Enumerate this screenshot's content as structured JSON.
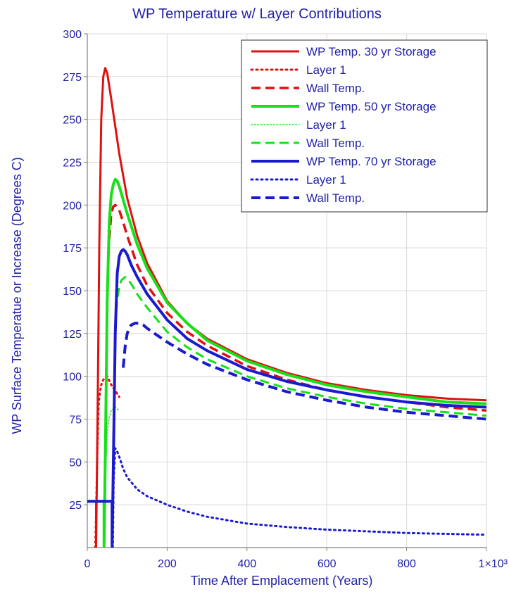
{
  "chart_data": {
    "type": "line",
    "title": "WP Temperature w/ Layer Contributions",
    "xlabel": "Time After Emplacement (Years)",
    "ylabel": "WP Surface Temperatue or Increase (Degrees C)",
    "xlim": [
      0,
      1000
    ],
    "ylim": [
      0,
      300
    ],
    "xticks": [
      0,
      200,
      400,
      600,
      800,
      1000
    ],
    "xtick_labels": [
      "0",
      "200",
      "400",
      "600",
      "800",
      "1×10³"
    ],
    "yticks": [
      25,
      50,
      75,
      100,
      125,
      150,
      175,
      200,
      225,
      250,
      275,
      300
    ],
    "grid": true,
    "legend_position": "top-right",
    "series": [
      {
        "name": "WP Temp. 30 yr Storage",
        "color": "#e01010",
        "style": "solid",
        "width": 3,
        "x": [
          0,
          22,
          22,
          26,
          30,
          35,
          40,
          45,
          50,
          60,
          70,
          80,
          100,
          125,
          150,
          200,
          250,
          300,
          400,
          500,
          600,
          700,
          800,
          900,
          1000
        ],
        "y": [
          27,
          27,
          0,
          80,
          175,
          250,
          275,
          280,
          277,
          262,
          246,
          230,
          204,
          182,
          166,
          144,
          131,
          122,
          110,
          102,
          96,
          92,
          89,
          87,
          86
        ]
      },
      {
        "name": "Layer 1",
        "color": "#e01010",
        "style": "dotted",
        "width": 3,
        "x": [
          20,
          22,
          25,
          28,
          30,
          35,
          40,
          50,
          60,
          80
        ],
        "y": [
          0,
          20,
          55,
          82,
          88,
          95,
          98,
          100,
          95,
          88
        ]
      },
      {
        "name": "Wall Temp.",
        "color": "#e01010",
        "style": "dashed",
        "width": 3.5,
        "x": [
          55,
          60,
          65,
          70,
          75,
          80,
          90,
          100,
          125,
          150,
          200,
          250,
          300,
          400,
          500,
          600,
          700,
          800,
          900,
          1000
        ],
        "y": [
          180,
          195,
          199,
          200,
          199,
          197,
          190,
          182,
          165,
          153,
          137,
          126,
          118,
          106,
          98,
          92,
          88,
          85,
          82,
          80
        ]
      },
      {
        "name": "WP Temp. 50 yr Storage",
        "color": "#18e018",
        "style": "solid",
        "width": 4,
        "x": [
          0,
          42,
          42,
          46,
          50,
          55,
          60,
          65,
          70,
          75,
          80,
          90,
          100,
          125,
          150,
          200,
          250,
          300,
          400,
          500,
          600,
          700,
          800,
          900,
          1000
        ],
        "y": [
          27,
          27,
          0,
          70,
          145,
          190,
          206,
          212,
          215,
          214,
          211,
          203,
          195,
          177,
          163,
          143,
          131,
          121,
          109,
          101,
          95,
          91,
          88,
          85,
          84
        ]
      },
      {
        "name": "Layer 1",
        "color": "#18e018",
        "style": "dotted",
        "width": 1.5,
        "x": [
          42,
          44,
          47,
          50,
          55,
          60,
          70,
          80
        ],
        "y": [
          0,
          20,
          50,
          68,
          76,
          80,
          82,
          80
        ]
      },
      {
        "name": "Wall Temp.",
        "color": "#18e018",
        "style": "dashed",
        "width": 3,
        "x": [
          70,
          75,
          80,
          85,
          90,
          95,
          100,
          110,
          125,
          150,
          200,
          250,
          300,
          400,
          500,
          600,
          700,
          800,
          900,
          1000
        ],
        "y": [
          130,
          145,
          152,
          156,
          157,
          158,
          157,
          154,
          148,
          140,
          126,
          117,
          110,
          100,
          93,
          88,
          84,
          81,
          79,
          77
        ]
      },
      {
        "name": "WP Temp. 70 yr Storage",
        "color": "#1a1ad0",
        "style": "solid",
        "width": 4,
        "x": [
          0,
          62,
          62,
          66,
          70,
          75,
          80,
          85,
          90,
          95,
          100,
          110,
          125,
          150,
          200,
          250,
          300,
          400,
          500,
          600,
          700,
          800,
          900,
          1000
        ],
        "y": [
          27,
          27,
          0,
          60,
          125,
          160,
          170,
          173,
          174,
          173,
          171,
          165,
          158,
          148,
          133,
          122,
          115,
          104,
          97,
          92,
          88,
          85,
          83,
          82
        ]
      },
      {
        "name": "Layer 1",
        "color": "#1a1ad0",
        "style": "dotted",
        "width": 3,
        "x": [
          64,
          66,
          70,
          75,
          80,
          90,
          100,
          125,
          150,
          200,
          250,
          300,
          400,
          500,
          600,
          700,
          800,
          900,
          1000
        ],
        "y": [
          0,
          40,
          58,
          56,
          53,
          46,
          41,
          34,
          30,
          25,
          21,
          18,
          14,
          12,
          10.5,
          9.5,
          8.5,
          8,
          7.5
        ]
      },
      {
        "name": "Wall Temp.",
        "color": "#1a1ad0",
        "style": "dashed",
        "width": 4,
        "x": [
          90,
          95,
          100,
          105,
          110,
          120,
          130,
          140,
          150,
          175,
          200,
          250,
          300,
          400,
          500,
          600,
          700,
          800,
          900,
          1000
        ],
        "y": [
          105,
          118,
          125,
          128,
          130,
          131,
          131,
          130,
          128,
          124,
          120,
          113,
          107,
          98,
          91,
          86,
          82,
          79,
          77,
          75
        ]
      }
    ]
  }
}
